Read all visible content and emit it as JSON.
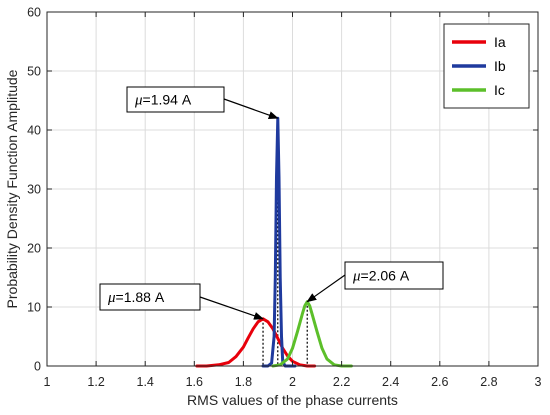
{
  "chart_data": {
    "type": "line",
    "xlabel": "RMS values of the phase currents",
    "ylabel": "Probability Density Function Amplitude",
    "xlim": [
      1,
      3
    ],
    "ylim": [
      0,
      60
    ],
    "xticks": [
      1,
      1.2,
      1.4,
      1.6,
      1.8,
      2,
      2.2,
      2.4,
      2.6,
      2.8,
      3
    ],
    "xtick_labels": [
      "1",
      "1.2",
      "1.4",
      "1.6",
      "1.8",
      "2",
      "2.2",
      "2.4",
      "2.6",
      "2.8",
      "3"
    ],
    "yticks": [
      0,
      10,
      20,
      30,
      40,
      50,
      60
    ],
    "ytick_labels": [
      "0",
      "10",
      "20",
      "30",
      "40",
      "50",
      "60"
    ],
    "grid": true,
    "legend_position": "top-right",
    "series": [
      {
        "name": "Ia",
        "color": "#e8000b",
        "x": [
          1.61,
          1.65,
          1.7,
          1.74,
          1.77,
          1.8,
          1.82,
          1.84,
          1.86,
          1.88,
          1.9,
          1.92,
          1.94,
          1.96,
          1.98,
          2.0,
          2.03,
          2.06,
          2.09
        ],
        "y": [
          0,
          0,
          0.2,
          0.6,
          1.6,
          3.2,
          4.8,
          6.3,
          7.5,
          8.0,
          7.5,
          6.3,
          4.7,
          3.0,
          1.7,
          0.8,
          0.2,
          0,
          0
        ]
      },
      {
        "name": "Ib",
        "color": "#1f3a9e",
        "x": [
          1.88,
          1.9,
          1.915,
          1.925,
          1.93,
          1.935,
          1.94,
          1.945,
          1.95,
          1.955,
          1.96,
          1.97,
          1.99,
          2.01
        ],
        "y": [
          0,
          0,
          0.5,
          5,
          15,
          32,
          42,
          32,
          15,
          5,
          0.8,
          0,
          0,
          0
        ]
      },
      {
        "name": "Ic",
        "color": "#5cbf2a",
        "x": [
          1.92,
          1.95,
          1.98,
          2.0,
          2.02,
          2.04,
          2.05,
          2.06,
          2.07,
          2.08,
          2.1,
          2.12,
          2.14,
          2.17,
          2.2,
          2.24
        ],
        "y": [
          0,
          0.2,
          1.2,
          3.0,
          5.8,
          8.8,
          10.2,
          10.9,
          10.2,
          8.8,
          5.8,
          3.0,
          1.2,
          0.2,
          0,
          0
        ]
      }
    ],
    "annotations": [
      {
        "mu_symbol": "μ",
        "text": "=1.94 A",
        "target_x": 1.94,
        "target_y": 42.0,
        "series": "Ib"
      },
      {
        "mu_symbol": "μ",
        "text": "=1.88 A",
        "target_x": 1.88,
        "target_y": 8.0,
        "series": "Ia"
      },
      {
        "mu_symbol": "μ",
        "text": "=2.06 A",
        "target_x": 2.06,
        "target_y": 10.9,
        "series": "Ic"
      }
    ]
  }
}
